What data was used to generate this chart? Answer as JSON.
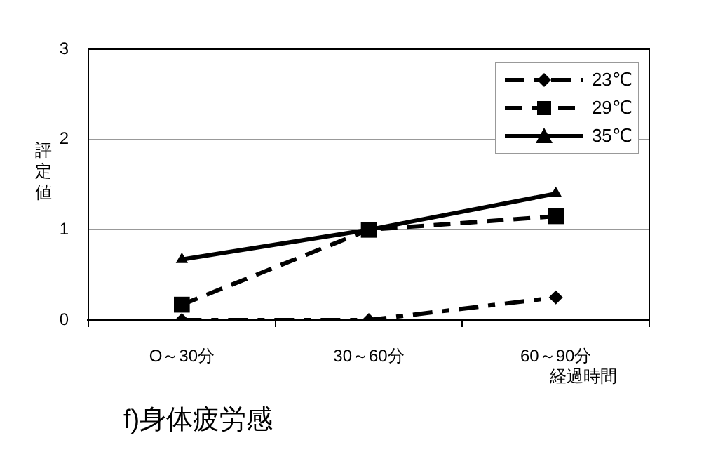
{
  "chart_data": {
    "type": "line",
    "title": "f)身体疲労感",
    "xlabel": "経過時間",
    "ylabel": "評定値",
    "categories": [
      "O～30分",
      "30～60分",
      "60～90分"
    ],
    "series": [
      {
        "name": "23℃",
        "color": "#000000",
        "values": [
          0,
          0,
          0.25
        ],
        "marker": "diamond",
        "line_style": "dashdot"
      },
      {
        "name": "29℃",
        "color": "#000000",
        "values": [
          0.17,
          1.0,
          1.15
        ],
        "marker": "square",
        "line_style": "dashed"
      },
      {
        "name": "35℃",
        "color": "#000000",
        "values": [
          0.67,
          1.0,
          1.4
        ],
        "marker": "triangle",
        "line_style": "solid"
      }
    ],
    "ylim": [
      0,
      3
    ],
    "yticks": [
      0,
      1,
      2,
      3
    ],
    "grid": "y",
    "legend": "top right"
  }
}
